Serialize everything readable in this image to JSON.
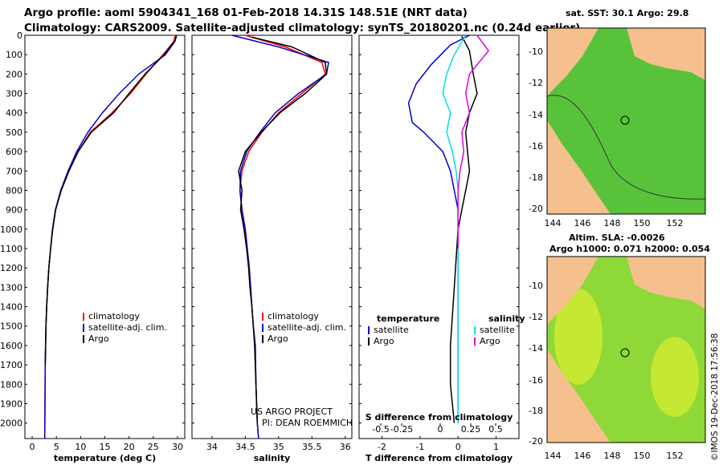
{
  "header": {
    "title_line1": "Argo profile: aoml 5904341_168 01-Feb-2018 14.31S 148.51E (NRT data)",
    "title_line2": "Climatology: CARS2009. Satellite-adjusted climatology: synTS_20180201.nc (0.24d earlier)"
  },
  "maps": {
    "sst_title": "sat. SST: 30.1 Argo: 29.8",
    "sla_title_line1": "Altim. SLA: -0.0026",
    "sla_title_line2": "Argo h1000: 0.071 h2000: 0.054",
    "lon_ticks": [
      "144",
      "146",
      "148",
      "150",
      "152"
    ],
    "lat_ticks": [
      "-10",
      "-12",
      "-14",
      "-16",
      "-18",
      "-20"
    ],
    "colors": {
      "land": "#f5c08e",
      "sea_dark": "#4cc04c",
      "sea_light": "#b8e028",
      "contour": "#333333"
    }
  },
  "credit": "©IMOS 19-Dec-2018 17:56:38",
  "annotations": {
    "project": "US ARGO PROJECT",
    "pi": "PI: DEAN ROEMMICH"
  },
  "chart_data": [
    {
      "type": "line",
      "id": "temperature",
      "xlabel": "temperature (deg C)",
      "ylabel": "",
      "xlim": [
        -1.5,
        31.5
      ],
      "ylim": [
        2080,
        0
      ],
      "xticks": [
        0,
        5,
        10,
        15,
        20,
        25,
        30
      ],
      "yticks": [
        0,
        100,
        200,
        300,
        400,
        500,
        600,
        700,
        800,
        900,
        1000,
        1100,
        1200,
        1300,
        1400,
        1500,
        1600,
        1700,
        1800,
        1900,
        2000
      ],
      "legend": [
        "climatology",
        "satellite-adj. clim.",
        "Argo"
      ],
      "series": [
        {
          "name": "climatology",
          "color": "#ff0000",
          "x": [
            29.5,
            29.3,
            27,
            23.5,
            20.3,
            16.5,
            12,
            9.5,
            7.5,
            6,
            4.8,
            4.2,
            3.8,
            3.45,
            3.2,
            3.0,
            2.85,
            2.7,
            2.6
          ],
          "y": [
            0,
            30,
            100,
            200,
            300,
            400,
            500,
            600,
            700,
            800,
            900,
            1000,
            1100,
            1200,
            1300,
            1400,
            1500,
            1700,
            2080
          ]
        },
        {
          "name": "satellite-adj. clim.",
          "color": "#0000cc",
          "x": [
            29.8,
            29.5,
            27.5,
            22,
            18,
            14.5,
            11.5,
            9.2,
            7.4,
            5.9,
            4.8,
            4.2,
            3.8,
            3.45,
            3.2,
            3.0,
            2.85,
            2.7,
            2.6
          ],
          "y": [
            0,
            30,
            100,
            200,
            300,
            400,
            500,
            600,
            700,
            800,
            900,
            1000,
            1100,
            1200,
            1300,
            1400,
            1500,
            1700,
            2080
          ]
        },
        {
          "name": "Argo",
          "color": "#000000",
          "x": [
            29.8,
            29.4,
            27.2,
            23.3,
            20,
            16.8,
            12.2,
            9.5,
            7.6,
            6.0,
            4.85,
            4.25,
            3.8,
            3.45,
            3.2,
            3.0,
            2.85,
            2.7
          ],
          "y": [
            5,
            30,
            100,
            200,
            300,
            400,
            500,
            600,
            700,
            800,
            900,
            1000,
            1100,
            1200,
            1300,
            1400,
            1500,
            1700
          ]
        }
      ]
    },
    {
      "type": "line",
      "id": "salinity",
      "xlabel": "salinity",
      "ylabel": "",
      "xlim": [
        33.7,
        36.1
      ],
      "ylim": [
        2080,
        0
      ],
      "xticks": [
        34,
        34.5,
        35,
        35.5,
        36
      ],
      "xticklabels": [
        "34",
        "34.5",
        "35",
        "35.5",
        "36"
      ],
      "legend": [
        "climatology",
        "satellite-adj. clim.",
        "Argo"
      ],
      "series": [
        {
          "name": "climatology",
          "color": "#ff0000",
          "x": [
            34.5,
            35.1,
            35.65,
            35.7,
            35.35,
            35.0,
            34.75,
            34.55,
            34.45,
            34.42,
            34.45,
            34.5,
            34.53,
            34.56,
            34.58,
            34.6,
            34.62,
            34.65,
            34.66,
            34.68,
            34.7
          ],
          "y": [
            0,
            60,
            140,
            200,
            300,
            400,
            500,
            600,
            700,
            800,
            900,
            1000,
            1100,
            1200,
            1300,
            1400,
            1500,
            1600,
            1800,
            2000,
            2080
          ]
        },
        {
          "name": "satellite-adj. clim.",
          "color": "#0000cc",
          "x": [
            34.3,
            35.0,
            35.75,
            35.72,
            35.3,
            34.95,
            34.72,
            34.52,
            34.43,
            34.42,
            34.45,
            34.5,
            34.53,
            34.56,
            34.58,
            34.6,
            34.62,
            34.65,
            34.66,
            34.68,
            34.7
          ],
          "y": [
            0,
            60,
            140,
            200,
            300,
            400,
            500,
            600,
            700,
            800,
            900,
            1000,
            1100,
            1200,
            1300,
            1400,
            1500,
            1600,
            1800,
            2000,
            2080
          ]
        },
        {
          "name": "Argo",
          "color": "#000000",
          "x": [
            34.6,
            35.2,
            35.7,
            35.72,
            35.4,
            35.02,
            34.74,
            34.5,
            34.4,
            34.45,
            34.43,
            34.48,
            34.52,
            34.55,
            34.57,
            34.6,
            34.62,
            34.64,
            34.66,
            34.68
          ],
          "y": [
            10,
            60,
            140,
            200,
            300,
            400,
            500,
            600,
            700,
            800,
            900,
            1000,
            1100,
            1200,
            1300,
            1400,
            1500,
            1600,
            1800,
            2000
          ]
        }
      ]
    },
    {
      "type": "line",
      "id": "difference",
      "xlabel": "T difference from climatology",
      "xlim": [
        -2.6,
        1.6
      ],
      "ylim": [
        2080,
        0
      ],
      "xticks": [
        -2,
        -1,
        0,
        1
      ],
      "xticklabels": [
        "-2",
        "-1",
        "0",
        "1"
      ],
      "s_axis_label": "S difference from climatology",
      "s_ticks": [
        "-0.5",
        "-0.25",
        "0",
        "0.25",
        "0.5"
      ],
      "legend_left_title": "temperature",
      "legend_right_title": "salinity",
      "legend": [
        "satellite",
        "Argo",
        "satellite",
        "Argo"
      ],
      "series": [
        {
          "name": "temperature satellite",
          "color": "#0000cc",
          "x": [
            0.3,
            -0.2,
            -0.7,
            -1.1,
            -1.3,
            -1.2,
            -0.9,
            -0.4,
            -0.2,
            -0.1,
            0,
            0,
            0,
            0,
            0
          ],
          "y": [
            0,
            50,
            150,
            250,
            350,
            450,
            500,
            600,
            700,
            800,
            900,
            1000,
            1200,
            1600,
            2000
          ]
        },
        {
          "name": "temperature Argo",
          "color": "#000000",
          "x": [
            0.1,
            0.3,
            0.4,
            0.5,
            0.3,
            0.2,
            0.25,
            0.3,
            0.2,
            0.1,
            0,
            -0.1,
            -0.2,
            -0.2,
            -0.1
          ],
          "y": [
            5,
            80,
            200,
            300,
            400,
            500,
            600,
            700,
            800,
            900,
            1000,
            1300,
            1600,
            1800,
            2000
          ]
        },
        {
          "name": "salinity satellite",
          "color": "#00e0e0",
          "x": [
            0.2,
            -0.1,
            -0.3,
            -0.4,
            -0.2,
            -0.3,
            -0.15,
            -0.05,
            0,
            0,
            0
          ],
          "y": [
            0,
            100,
            200,
            300,
            400,
            500,
            600,
            700,
            800,
            1000,
            2000
          ]
        },
        {
          "name": "salinity Argo",
          "color": "#e000e0",
          "x": [
            0.5,
            0.8,
            0.3,
            0.2,
            0.3,
            0.1,
            0.15,
            0.05,
            0,
            0,
            0
          ],
          "y": [
            0,
            80,
            200,
            300,
            400,
            500,
            600,
            700,
            800,
            1000,
            1100
          ]
        }
      ]
    }
  ]
}
